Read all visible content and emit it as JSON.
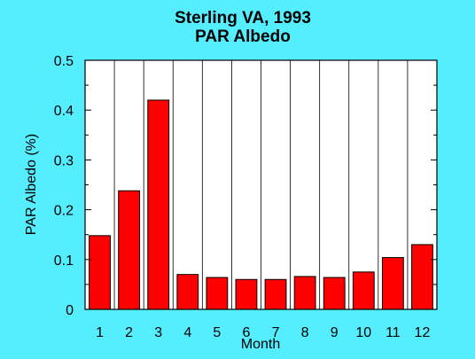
{
  "chart_data": {
    "type": "bar",
    "title": "Sterling VA, 1993",
    "subtitle": "PAR Albedo",
    "xlabel": "Month",
    "ylabel": "PAR Albedo (%)",
    "categories": [
      "1",
      "2",
      "3",
      "4",
      "5",
      "6",
      "7",
      "8",
      "9",
      "10",
      "11",
      "12"
    ],
    "values": [
      0.148,
      0.238,
      0.42,
      0.07,
      0.064,
      0.06,
      0.06,
      0.066,
      0.064,
      0.075,
      0.104,
      0.13
    ],
    "ylim": [
      0,
      0.5
    ],
    "yticks": [
      "0",
      "0.1",
      "0.2",
      "0.3",
      "0.4",
      "0.5"
    ],
    "grid": true,
    "colors": {
      "background": "#55EEFF",
      "plot_background": "#FFFFFF",
      "bar": "#FF0000",
      "axis": "#000000",
      "grid": "#000000"
    }
  }
}
